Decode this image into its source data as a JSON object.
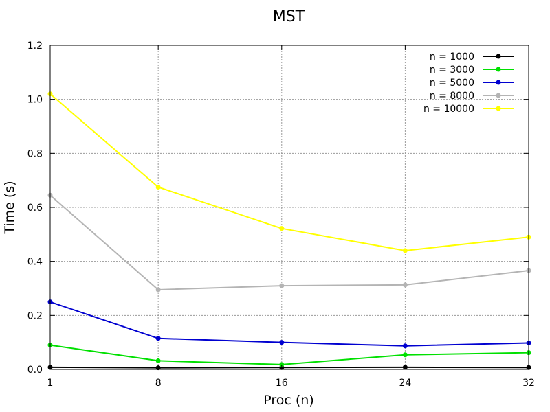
{
  "chart_data": {
    "type": "line",
    "title": "MST",
    "xlabel": "Proc (n)",
    "ylabel": "Time (s)",
    "x": [
      1,
      8,
      16,
      24,
      32
    ],
    "x_ticks": [
      "1",
      "8",
      "16",
      "24",
      "32"
    ],
    "ylim": [
      0,
      1.2
    ],
    "y_ticks": [
      "0.0",
      "0.2",
      "0.4",
      "0.6",
      "0.8",
      "1.0",
      "1.2"
    ],
    "grid": true,
    "legend_position": "top-right",
    "series": [
      {
        "name": "n = 1000",
        "color": "#000000",
        "values": [
          0.008,
          0.006,
          0.007,
          0.008,
          0.007
        ]
      },
      {
        "name": "n = 3000",
        "color": "#00e000",
        "values": [
          0.09,
          0.032,
          0.018,
          0.054,
          0.062
        ]
      },
      {
        "name": "n = 5000",
        "color": "#0000d0",
        "values": [
          0.25,
          0.115,
          0.1,
          0.087,
          0.098
        ]
      },
      {
        "name": "n = 8000",
        "color": "#b4b4b4",
        "values": [
          0.645,
          0.295,
          0.31,
          0.313,
          0.366
        ]
      },
      {
        "name": "n = 10000",
        "color": "#ffff00",
        "values": [
          1.02,
          0.675,
          0.522,
          0.44,
          0.49
        ]
      }
    ]
  }
}
